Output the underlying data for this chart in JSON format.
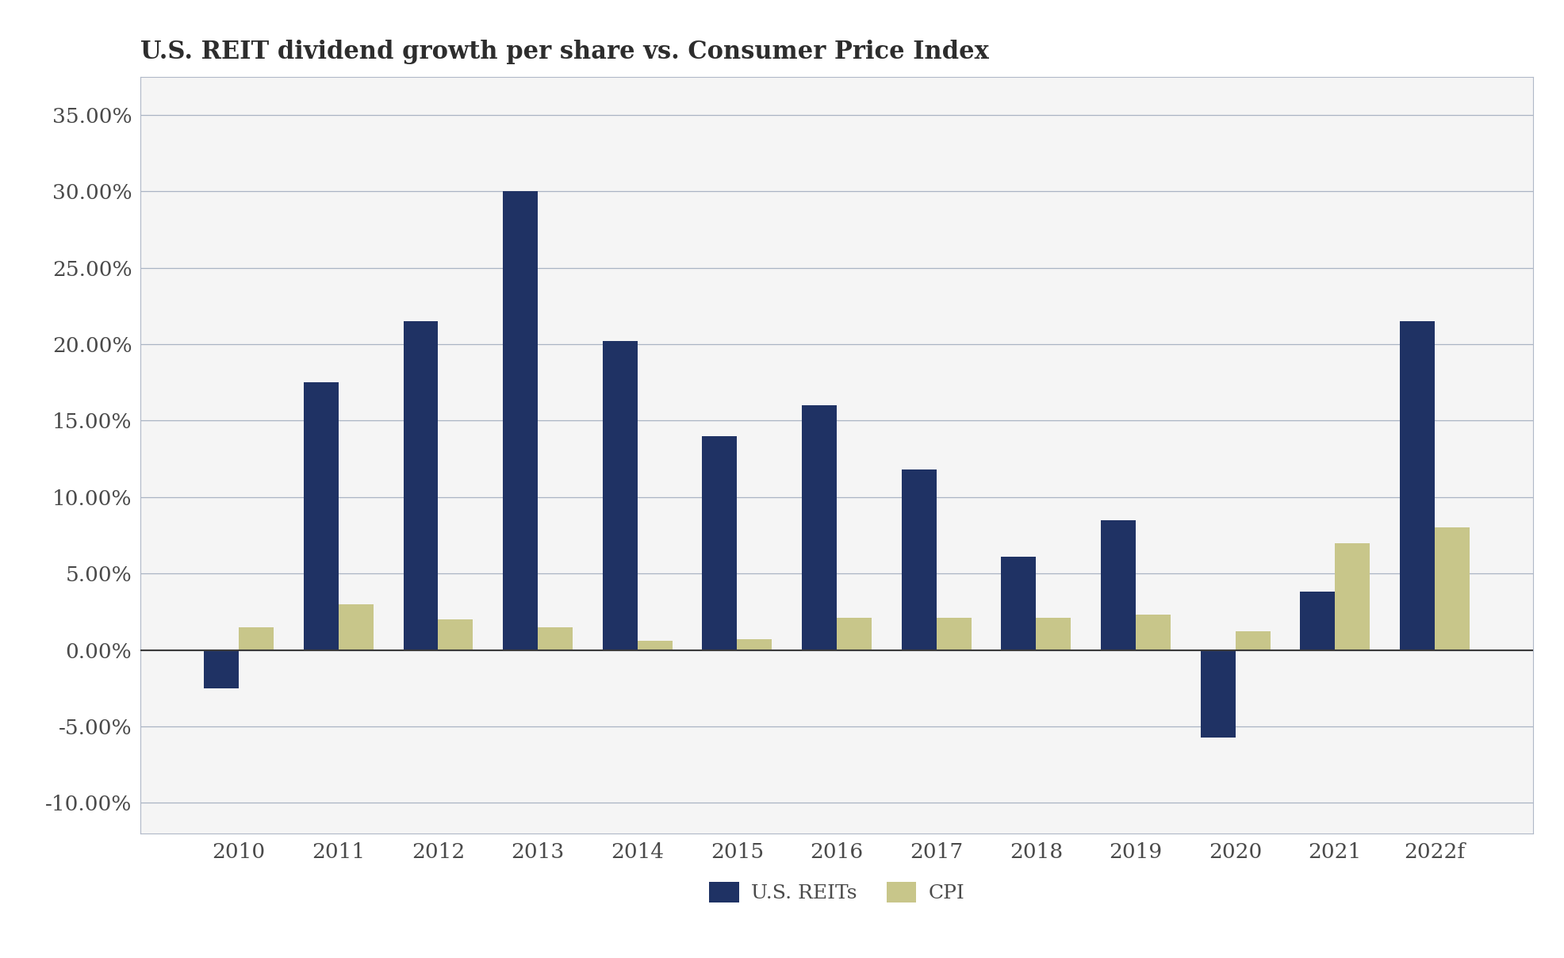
{
  "title": "U.S. REIT dividend growth per share vs. Consumer Price Index",
  "categories": [
    "2010",
    "2011",
    "2012",
    "2013",
    "2014",
    "2015",
    "2016",
    "2017",
    "2018",
    "2019",
    "2020",
    "2021",
    "2022f"
  ],
  "reits": [
    -0.025,
    0.175,
    0.215,
    0.3,
    0.202,
    0.14,
    0.16,
    0.118,
    0.061,
    0.085,
    -0.057,
    0.038,
    0.215
  ],
  "cpi": [
    0.015,
    0.03,
    0.02,
    0.015,
    0.006,
    0.007,
    0.021,
    0.021,
    0.021,
    0.023,
    0.012,
    0.07,
    0.08
  ],
  "reit_color": "#1f3264",
  "cpi_color": "#c8c68a",
  "title_color": "#2d2d2d",
  "tick_label_color": "#4a4a4a",
  "background_color": "#ffffff",
  "plot_bg_color": "#f5f5f5",
  "grid_color": "#aab4c4",
  "border_color": "#b0b8c8",
  "ylim": [
    -0.12,
    0.375
  ],
  "yticks": [
    -0.1,
    -0.05,
    0.0,
    0.05,
    0.1,
    0.15,
    0.2,
    0.25,
    0.3,
    0.35
  ],
  "legend_labels": [
    "U.S. REITs",
    "CPI"
  ],
  "bar_width": 0.35,
  "title_fontsize": 22,
  "tick_fontsize": 19,
  "legend_fontsize": 18
}
